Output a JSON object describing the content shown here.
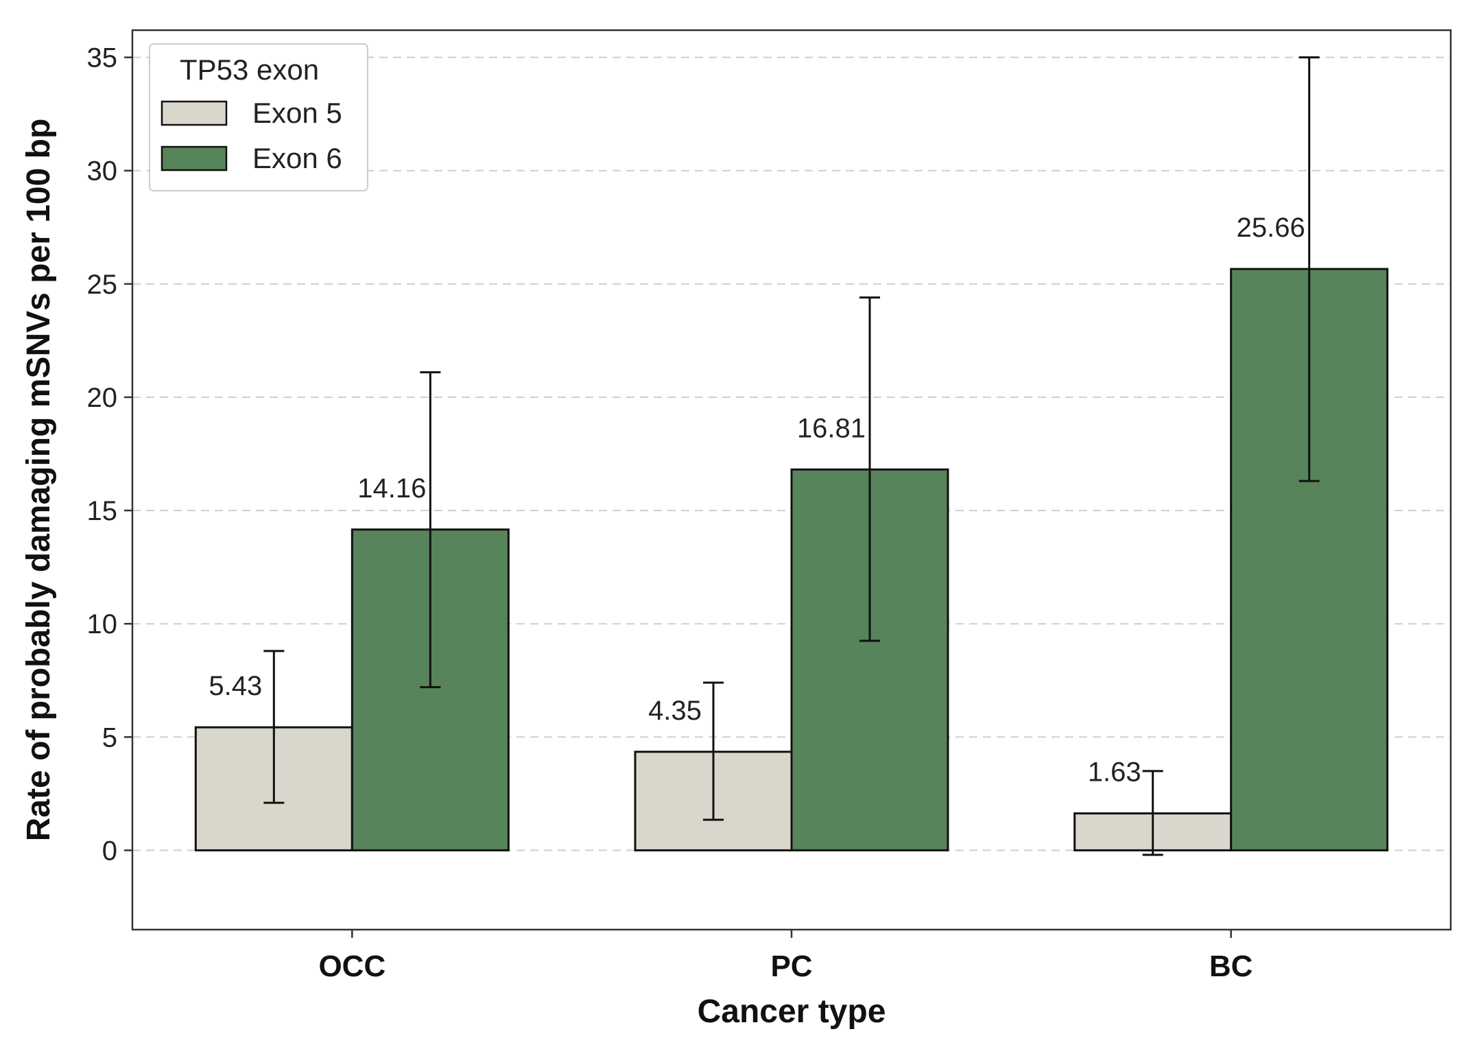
{
  "chart_data": {
    "type": "bar",
    "title": "",
    "xlabel": "Cancer type",
    "ylabel": "Rate of probably damaging mSNVs per 100 bp",
    "categories": [
      "OCC",
      "PC",
      "BC"
    ],
    "ylim": [
      -3.5,
      36.2
    ],
    "yticks": [
      0,
      5,
      10,
      15,
      20,
      25,
      30,
      35
    ],
    "grid": "horizontal dashed",
    "legend": {
      "title": "TP53 exon",
      "position": "top-left"
    },
    "series": [
      {
        "name": "Exon 5",
        "color": "#d9d7cc",
        "values": [
          5.43,
          4.35,
          1.63
        ],
        "value_labels": [
          "5.43",
          "4.35",
          "1.63"
        ],
        "error_low": [
          2.1,
          1.35,
          -0.2
        ],
        "error_high": [
          8.8,
          7.4,
          3.5
        ]
      },
      {
        "name": "Exon 6",
        "color": "#57845a",
        "values": [
          14.16,
          16.81,
          25.66
        ],
        "value_labels": [
          "14.16",
          "16.81",
          "25.66"
        ],
        "error_low": [
          7.2,
          9.25,
          16.3
        ],
        "error_high": [
          21.1,
          24.4,
          35.0
        ]
      }
    ]
  }
}
